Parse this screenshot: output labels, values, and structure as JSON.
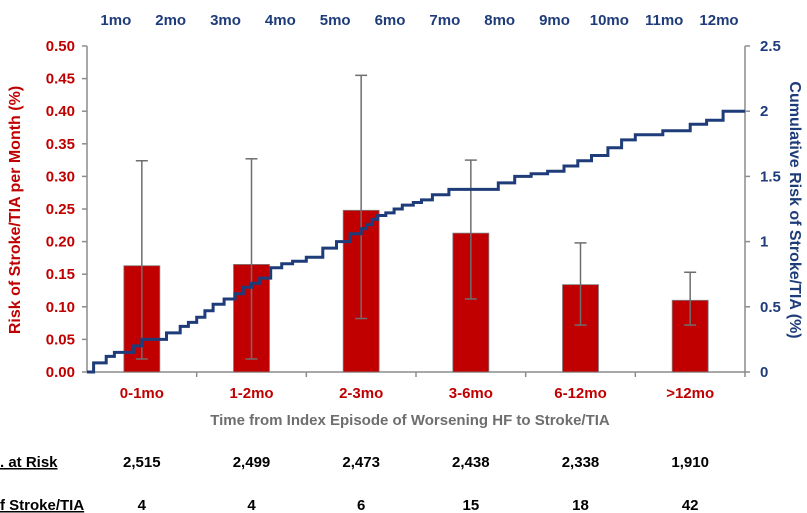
{
  "chart_data": {
    "type": "bar",
    "categories": [
      "0-1mo",
      "1-2mo",
      "2-3mo",
      "3-6mo",
      "6-12mo",
      ">12mo"
    ],
    "series": [
      {
        "values": [
          0.163,
          0.165,
          0.248,
          0.213,
          0.134,
          0.11
        ],
        "error_low": [
          0.02,
          0.02,
          0.082,
          0.112,
          0.072,
          0.072
        ],
        "error_high": [
          0.324,
          0.327,
          0.455,
          0.325,
          0.198,
          0.153
        ]
      }
    ],
    "cumulative_line": {
      "months": [
        0,
        0.12,
        0.35,
        0.5,
        0.85,
        1,
        1.2,
        1.45,
        1.7,
        1.85,
        2,
        2.15,
        2.3,
        2.5,
        2.7,
        2.85,
        3,
        3.15,
        3.35,
        3.55,
        3.75,
        4,
        4.3,
        4.55,
        4.8,
        5,
        5.1,
        5.2,
        5.3,
        5.45,
        5.6,
        5.75,
        5.95,
        6.1,
        6.3,
        6.6,
        6.9,
        7.2,
        7.5,
        7.8,
        8.1,
        8.4,
        8.7,
        8.95,
        9.2,
        9.5,
        9.75,
        10,
        10.5,
        11,
        11.3,
        11.6,
        12
      ],
      "cumulative_pct": [
        0,
        0.07,
        0.12,
        0.15,
        0.2,
        0.25,
        0.25,
        0.3,
        0.35,
        0.38,
        0.42,
        0.47,
        0.52,
        0.56,
        0.6,
        0.65,
        0.68,
        0.72,
        0.8,
        0.83,
        0.85,
        0.88,
        0.95,
        1.0,
        1.06,
        1.1,
        1.13,
        1.17,
        1.2,
        1.22,
        1.25,
        1.28,
        1.3,
        1.32,
        1.36,
        1.4,
        1.4,
        1.4,
        1.45,
        1.5,
        1.52,
        1.54,
        1.58,
        1.62,
        1.66,
        1.72,
        1.78,
        1.82,
        1.85,
        1.9,
        1.93,
        2.0,
        2.0
      ]
    },
    "y_left": {
      "label": "Risk of Stroke/TIA per Month (%)",
      "lim": [
        0,
        0.5
      ],
      "ticks": [
        "0.00",
        "0.05",
        "0.10",
        "0.15",
        "0.20",
        "0.25",
        "0.30",
        "0.35",
        "0.40",
        "0.45",
        "0.50"
      ]
    },
    "y_right": {
      "label": "Cumulative Risk of Stroke/TIA (%)",
      "lim": [
        0,
        2.5
      ],
      "ticks": [
        "0",
        "0.5",
        "1",
        "1.5",
        "2",
        "2.5"
      ]
    },
    "top_axis": {
      "lim": [
        0,
        12
      ],
      "ticks": [
        "1mo",
        "2mo",
        "3mo",
        "4mo",
        "5mo",
        "6mo",
        "7mo",
        "8mo",
        "9mo",
        "10mo",
        "11mo",
        "12mo"
      ]
    },
    "xlabel": "Time from Index Episode of Worsening HF to Stroke/TIA",
    "table": {
      "rows": [
        {
          "label": ". at Risk",
          "values": [
            "2,515",
            "2,499",
            "2,473",
            "2,438",
            "2,338",
            "1,910"
          ]
        },
        {
          "label": "f Stroke/TIA",
          "values": [
            "4",
            "4",
            "6",
            "15",
            "18",
            "42"
          ]
        }
      ]
    }
  },
  "colors": {
    "bar": "#c00000",
    "line": "#1f3c7a",
    "left_axis_text": "#c00000",
    "right_axis_text": "#1f3c7a",
    "xlabel_text": "#6e6e6e"
  }
}
